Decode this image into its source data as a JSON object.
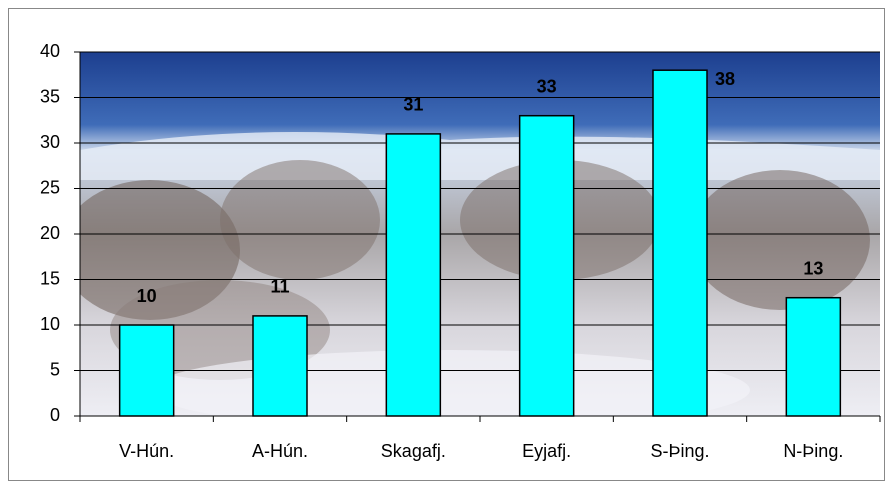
{
  "chart_data": {
    "type": "bar",
    "categories": [
      "V-Hún.",
      "A-Hún.",
      "Skagafj.",
      "Eyjafj.",
      "S-Þing.",
      "N-Þing."
    ],
    "values": [
      10,
      11,
      31,
      33,
      38,
      13
    ],
    "color": "#00ffff",
    "label_color": "#00ffff",
    "ylim": [
      0,
      40
    ],
    "yticks": [
      0,
      5,
      10,
      15,
      20,
      25,
      30,
      35,
      40
    ],
    "grid": true
  }
}
